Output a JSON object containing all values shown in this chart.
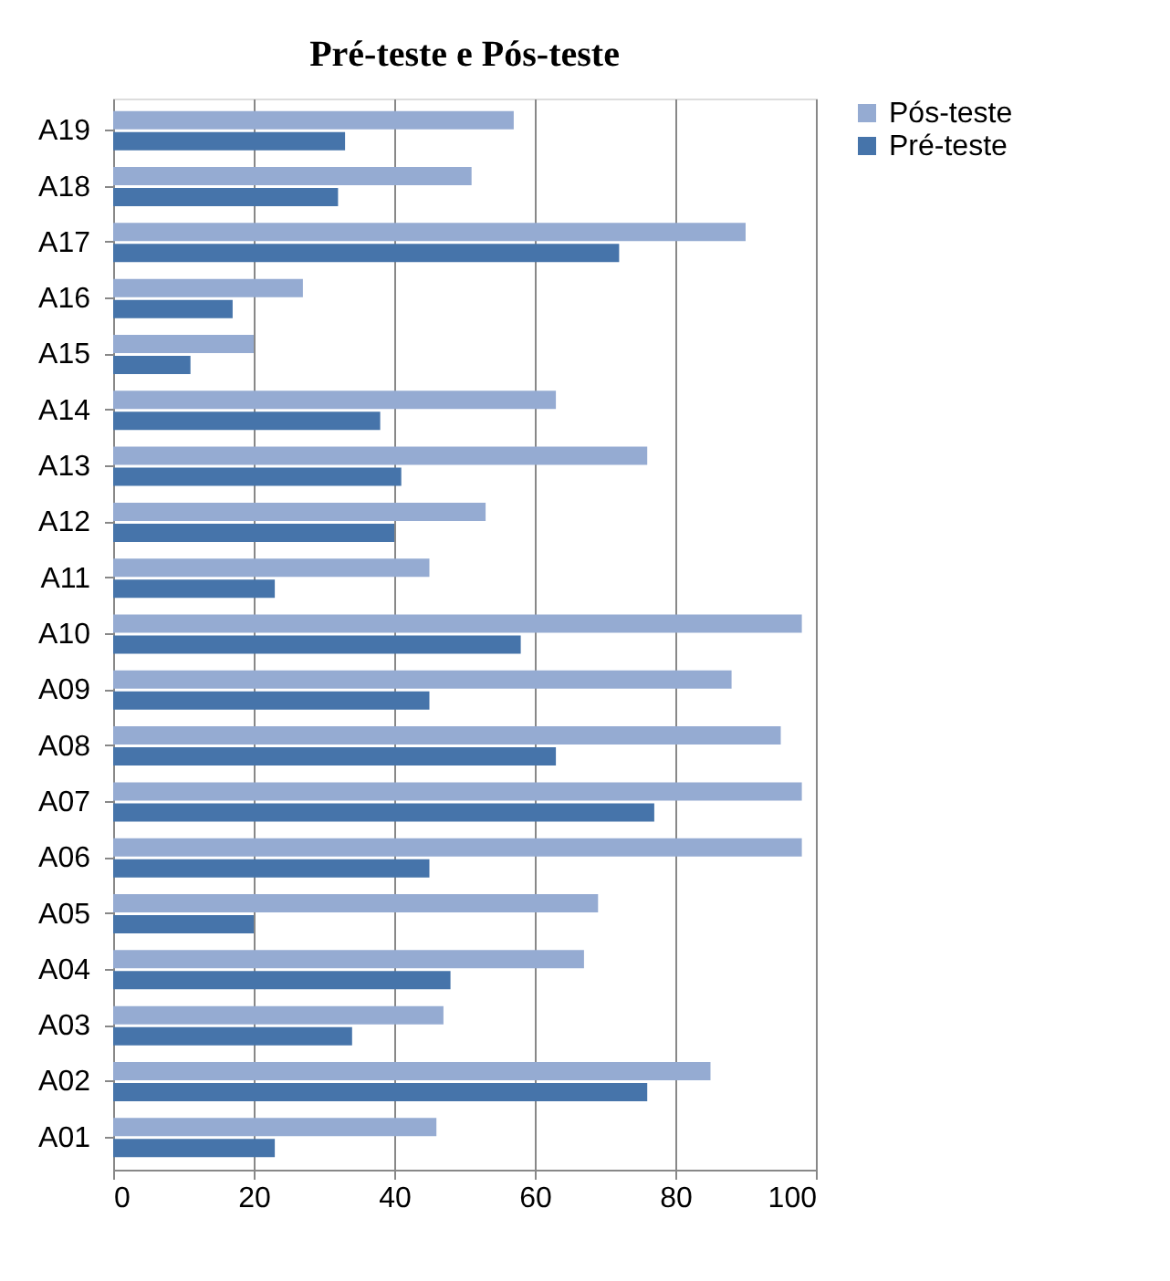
{
  "chart_data": {
    "type": "bar",
    "orientation": "horizontal",
    "title": "Pré-teste e Pós-teste",
    "categories": [
      "A19",
      "A18",
      "A17",
      "A16",
      "A15",
      "A14",
      "A13",
      "A12",
      "A11",
      "A10",
      "A09",
      "A08",
      "A07",
      "A06",
      "A05",
      "A04",
      "A03",
      "A02",
      "A01"
    ],
    "series": [
      {
        "name": "Pós-teste",
        "color": "#95abd2",
        "values": [
          57,
          51,
          90,
          27,
          20,
          63,
          76,
          53,
          45,
          98,
          88,
          95,
          98,
          98,
          69,
          67,
          47,
          85,
          46
        ]
      },
      {
        "name": "Pré-teste",
        "color": "#4674aa",
        "values": [
          33,
          32,
          72,
          17,
          11,
          38,
          41,
          40,
          23,
          58,
          45,
          63,
          77,
          45,
          20,
          48,
          34,
          76,
          23
        ]
      }
    ],
    "xlim": [
      0,
      100
    ],
    "xticks": [
      0,
      20,
      40,
      60,
      80,
      100
    ],
    "grid": "x",
    "legend": "right"
  }
}
